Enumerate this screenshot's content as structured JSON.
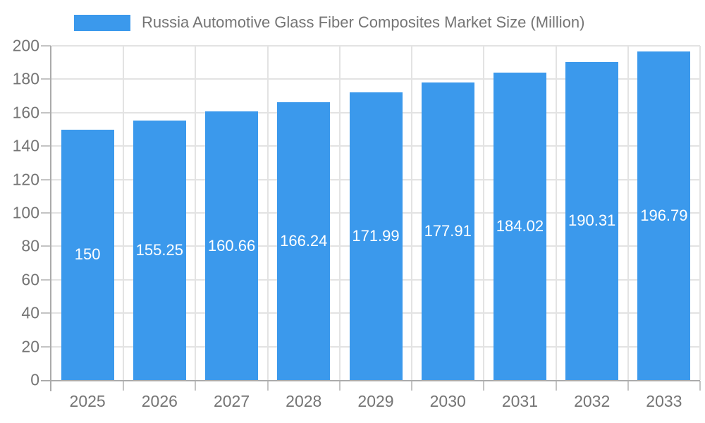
{
  "legend": {
    "label": "Russia Automotive Glass Fiber Composites Market Size (Million)"
  },
  "chart_data": {
    "type": "bar",
    "title": "Russia Automotive Glass Fiber Composites Market Size (Million)",
    "categories": [
      "2025",
      "2026",
      "2027",
      "2028",
      "2029",
      "2030",
      "2031",
      "2032",
      "2033"
    ],
    "values": [
      150,
      155.25,
      160.66,
      166.24,
      171.99,
      177.91,
      184.02,
      190.31,
      196.79
    ],
    "value_labels": [
      "150",
      "155.25",
      "160.66",
      "166.24",
      "171.99",
      "177.91",
      "184.02",
      "190.31",
      "196.79"
    ],
    "xlabel": "",
    "ylabel": "",
    "ylim": [
      0,
      200
    ],
    "ytick_step": 20,
    "yticks": [
      0,
      20,
      40,
      60,
      80,
      100,
      120,
      140,
      160,
      180,
      200
    ],
    "grid": true,
    "legend_position": "top",
    "colors": {
      "bar": "#3B99EC",
      "bar_label": "#FFFFFF",
      "axis_text": "#757575",
      "gridline": "#E3E3E3",
      "axis_line": "#ABABAB",
      "tick": "#C4C4C4",
      "background": "#FFFFFF"
    }
  }
}
